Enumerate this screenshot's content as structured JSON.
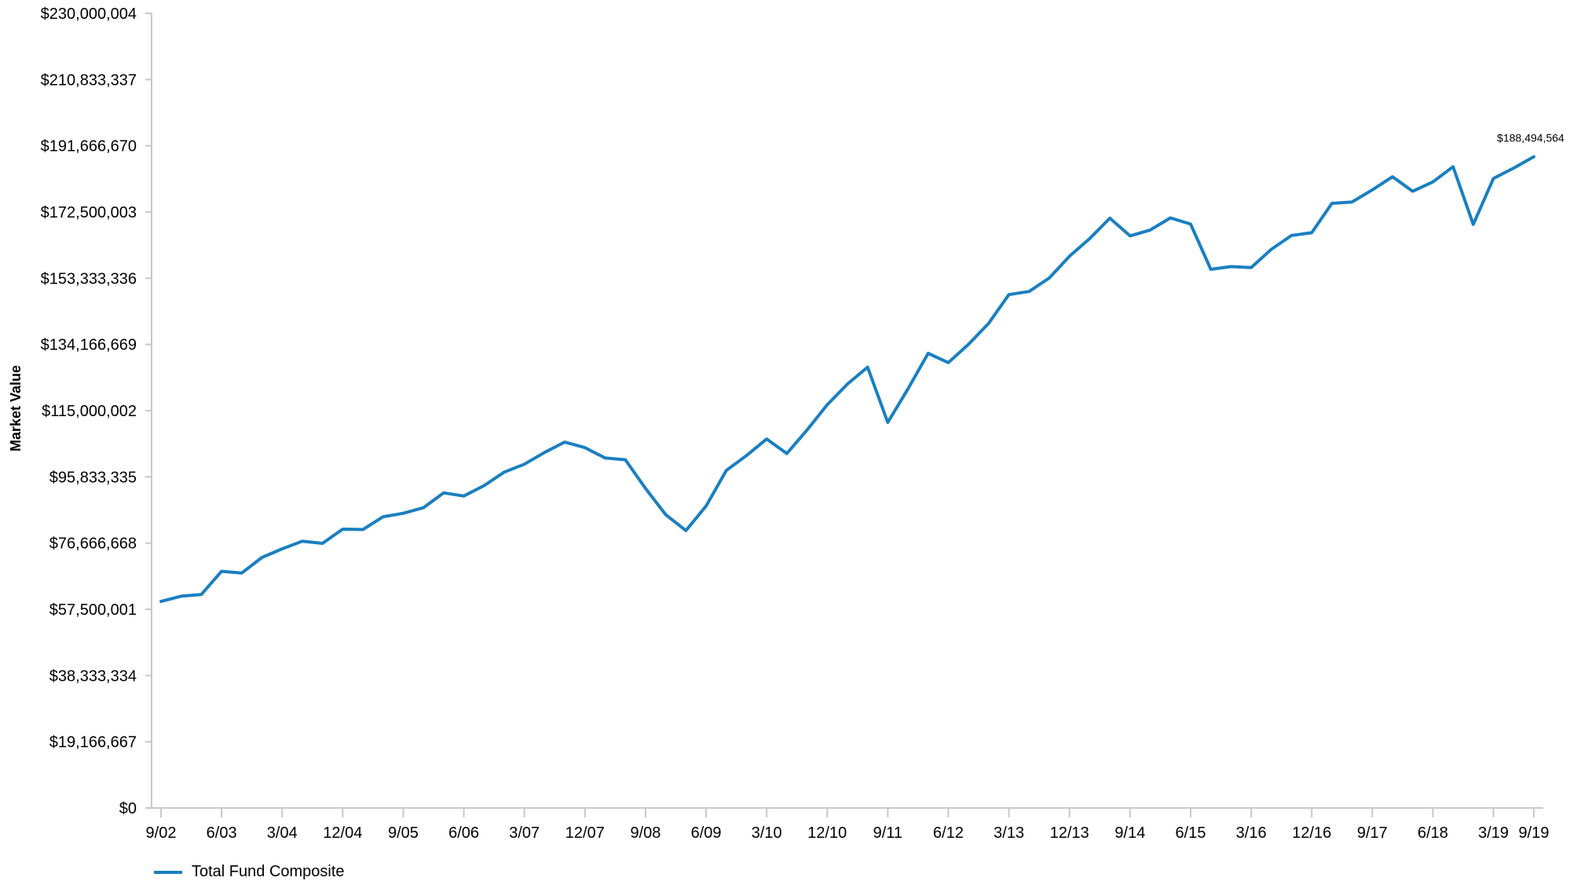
{
  "chart_data": {
    "type": "line",
    "title": "",
    "xlabel": "",
    "ylabel": "Market Value",
    "ylim": [
      0,
      230000004
    ],
    "y_ticks": [
      "$0",
      "$19,166,667",
      "$38,333,334",
      "$57,500,001",
      "$76,666,668",
      "$95,833,335",
      "$115,000,002",
      "$134,166,669",
      "$153,333,336",
      "$172,500,003",
      "$191,666,670",
      "$210,833,337",
      "$230,000,004"
    ],
    "x_ticks": [
      "9/02",
      "6/03",
      "3/04",
      "12/04",
      "9/05",
      "6/06",
      "3/07",
      "12/07",
      "9/08",
      "6/09",
      "3/10",
      "12/10",
      "9/11",
      "6/12",
      "3/13",
      "12/13",
      "9/14",
      "6/15",
      "3/16",
      "12/16",
      "9/17",
      "6/18",
      "3/19",
      "9/19"
    ],
    "grid": false,
    "legend_position": "bottom-left",
    "line_color": "#1a7fc1",
    "end_label": "$188,494,564",
    "series": [
      {
        "name": "Total Fund Composite",
        "x": [
          "9/02",
          "12/02",
          "3/03",
          "6/03",
          "9/03",
          "12/03",
          "3/04",
          "6/04",
          "9/04",
          "12/04",
          "3/05",
          "6/05",
          "9/05",
          "12/05",
          "3/06",
          "6/06",
          "9/06",
          "12/06",
          "3/07",
          "6/07",
          "9/07",
          "12/07",
          "3/08",
          "6/08",
          "9/08",
          "12/08",
          "3/09",
          "6/09",
          "9/09",
          "12/09",
          "3/10",
          "6/10",
          "9/10",
          "12/10",
          "3/11",
          "6/11",
          "9/11",
          "12/11",
          "3/12",
          "6/12",
          "9/12",
          "12/12",
          "3/13",
          "6/13",
          "9/13",
          "12/13",
          "3/14",
          "6/14",
          "9/14",
          "12/14",
          "3/15",
          "6/15",
          "9/15",
          "12/15",
          "3/16",
          "6/16",
          "9/16",
          "12/16",
          "3/17",
          "6/17",
          "9/17",
          "12/17",
          "3/18",
          "6/18",
          "9/18",
          "12/18",
          "3/19",
          "6/19",
          "9/19"
        ],
        "values": [
          59800000,
          61300000,
          61800000,
          68500000,
          68000000,
          72500000,
          75000000,
          77200000,
          76600000,
          80700000,
          80600000,
          84300000,
          85300000,
          86900000,
          91200000,
          90300000,
          93300000,
          97200000,
          99500000,
          102900000,
          105900000,
          104300000,
          101300000,
          100800000,
          92500000,
          84900000,
          80300000,
          87400000,
          97700000,
          102000000,
          106800000,
          102600000,
          109400000,
          116700000,
          122700000,
          127600000,
          111600000,
          121300000,
          131600000,
          128900000,
          134200000,
          140300000,
          148600000,
          149500000,
          153400000,
          159700000,
          164800000,
          170700000,
          165600000,
          167300000,
          170800000,
          169000000,
          155900000,
          156700000,
          156400000,
          161700000,
          165700000,
          166500000,
          175000000,
          175400000,
          178900000,
          182700000,
          178500000,
          181200000,
          185600000,
          168900000,
          182200000,
          185200000,
          188494564
        ]
      }
    ]
  }
}
